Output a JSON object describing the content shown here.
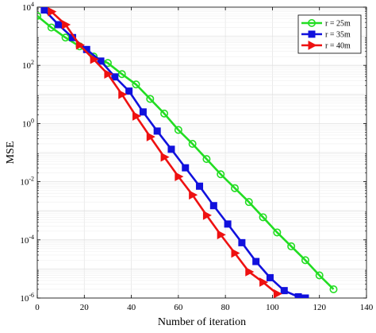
{
  "chart_data": {
    "type": "line",
    "title": "",
    "xlabel": "Number of iteration",
    "ylabel": "MSE",
    "xlim": [
      0,
      140
    ],
    "ylim": [
      1e-06,
      10000.0
    ],
    "yscale": "log",
    "grid": true,
    "legend_position": "top-right",
    "x_ticks": [
      "0",
      "20",
      "40",
      "60",
      "80",
      "100",
      "120",
      "140"
    ],
    "y_ticks": [
      {
        "base": "10",
        "exp": "4",
        "value": 10000
      },
      {
        "base": "10",
        "exp": "2",
        "value": 100
      },
      {
        "base": "10",
        "exp": "0",
        "value": 1
      },
      {
        "base": "10",
        "exp": "-2",
        "value": 0.01
      },
      {
        "base": "10",
        "exp": "-4",
        "value": 0.0001
      },
      {
        "base": "10",
        "exp": "-6",
        "value": 1e-06
      }
    ],
    "series": [
      {
        "name": "r = 25m",
        "color": "#22dd22",
        "marker": "circle",
        "x": [
          0,
          6,
          12,
          18,
          24,
          30,
          36,
          42,
          48,
          54,
          60,
          66,
          72,
          78,
          84,
          90,
          96,
          102,
          108,
          114,
          120,
          126
        ],
        "y": [
          5000,
          2000,
          900,
          450,
          200,
          120,
          50,
          22,
          7,
          2.2,
          0.6,
          0.2,
          0.06,
          0.018,
          0.006,
          0.002,
          0.0006,
          0.00018,
          6e-05,
          2e-05,
          6e-06,
          2e-06
        ]
      },
      {
        "name": "r = 35m",
        "color": "#1111dd",
        "marker": "square",
        "x": [
          3,
          9,
          15,
          21,
          27,
          33,
          39,
          45,
          51,
          57,
          63,
          69,
          75,
          81,
          87,
          93,
          99,
          105,
          111,
          114
        ],
        "y": [
          8000,
          2500,
          900,
          350,
          140,
          40,
          13,
          2.5,
          0.55,
          0.13,
          0.03,
          0.007,
          0.0015,
          0.00035,
          8e-05,
          1.8e-05,
          5e-06,
          1.8e-06,
          1.1e-06,
          1e-06
        ]
      },
      {
        "name": "r = 40m",
        "color": "#ee1111",
        "marker": "triangle-right",
        "x": [
          6,
          12,
          18,
          24,
          30,
          36,
          42,
          48,
          54,
          60,
          66,
          72,
          78,
          84,
          90,
          96,
          102
        ],
        "y": [
          7000,
          2500,
          500,
          160,
          50,
          10,
          1.8,
          0.35,
          0.07,
          0.015,
          0.0035,
          0.0007,
          0.00015,
          3.5e-05,
          8e-06,
          3.5e-06,
          1.4e-06
        ]
      }
    ]
  }
}
